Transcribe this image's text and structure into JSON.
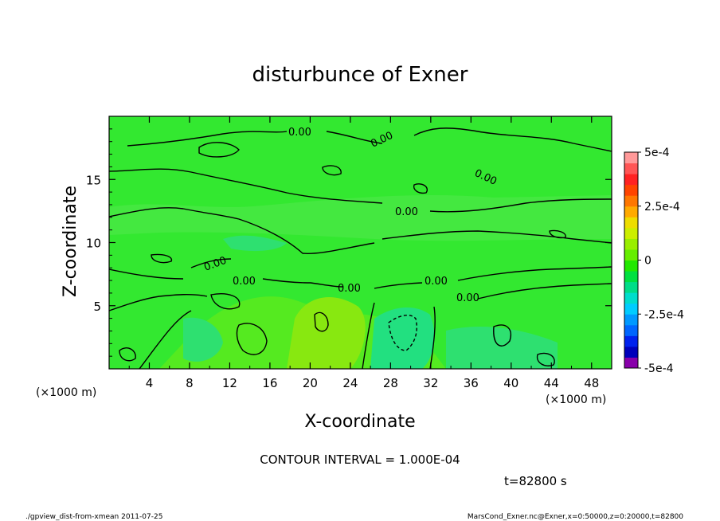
{
  "chart_data": {
    "type": "heatmap",
    "title": "disturbunce of Exner",
    "xlabel": "X-coordinate",
    "ylabel": "Z-coordinate",
    "x_unit": "(×1000 m)",
    "y_unit": "(×1000 m)",
    "xlim": [
      0,
      50
    ],
    "ylim": [
      0,
      20
    ],
    "x_ticks": [
      4,
      8,
      12,
      16,
      20,
      24,
      28,
      32,
      36,
      40,
      44,
      48
    ],
    "y_ticks": [
      5,
      10,
      15
    ],
    "colorbar": {
      "range": [
        -0.0005,
        0.0005
      ],
      "tick_labels": [
        "5e-4",
        "2.5e-4",
        "0",
        "-2.5e-4",
        "-5e-4"
      ],
      "tick_values": [
        0.0005,
        0.00025,
        0,
        -0.00025,
        -0.0005
      ],
      "colors": [
        "#8800aa",
        "#0000bb",
        "#0022ee",
        "#0066ff",
        "#0099ff",
        "#00ccff",
        "#00ddcc",
        "#00dd88",
        "#00e040",
        "#22e800",
        "#66ee00",
        "#99ee00",
        "#ccee00",
        "#eedd00",
        "#ffaa00",
        "#ff7700",
        "#ff4400",
        "#ff2222",
        "#ff5555",
        "#ff9999"
      ]
    },
    "contour_labels": [
      "0.00",
      "0.00",
      "0.00",
      "0.00",
      "0.00",
      "0.00",
      "0.00",
      "0.00",
      "0.00"
    ],
    "contour_interval": "CONTOUR INTERVAL = 1.000E-04",
    "time": "t=82800 s"
  },
  "footer": {
    "left": "./gpview_dist-from-xmean  2011-07-25",
    "right": "MarsCond_Exner.nc@Exner,x=0:50000,z=0:20000,t=82800"
  }
}
